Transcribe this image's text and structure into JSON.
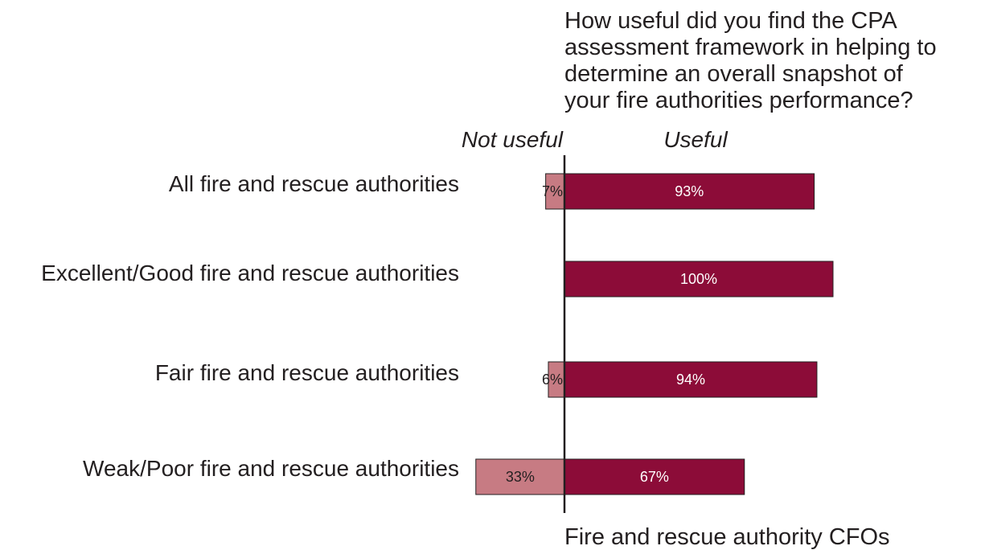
{
  "chart_data": {
    "type": "bar",
    "orientation": "horizontal-diverging",
    "title_lines": [
      "How useful did you find the CPA",
      "assessment framework in helping to",
      "determine an overall snapshot of",
      "your fire authorities performance?"
    ],
    "left_label": "Not useful",
    "right_label": "Useful",
    "footer": "Fire and rescue authority CFOs",
    "categories": [
      "All fire and rescue authorities",
      "Excellent/Good fire and rescue authorities",
      "Fair fire and rescue authorities",
      "Weak/Poor fire and rescue authorities"
    ],
    "series": [
      {
        "name": "Not useful",
        "values": [
          7,
          0,
          6,
          33
        ],
        "labels": [
          "7%",
          "",
          "6%",
          "33%"
        ],
        "color": "#c77b83"
      },
      {
        "name": "Useful",
        "values": [
          93,
          100,
          94,
          67
        ],
        "labels": [
          "93%",
          "100%",
          "94%",
          "67%"
        ],
        "color": "#8c0c38"
      }
    ],
    "unit": "%",
    "grid": false
  }
}
